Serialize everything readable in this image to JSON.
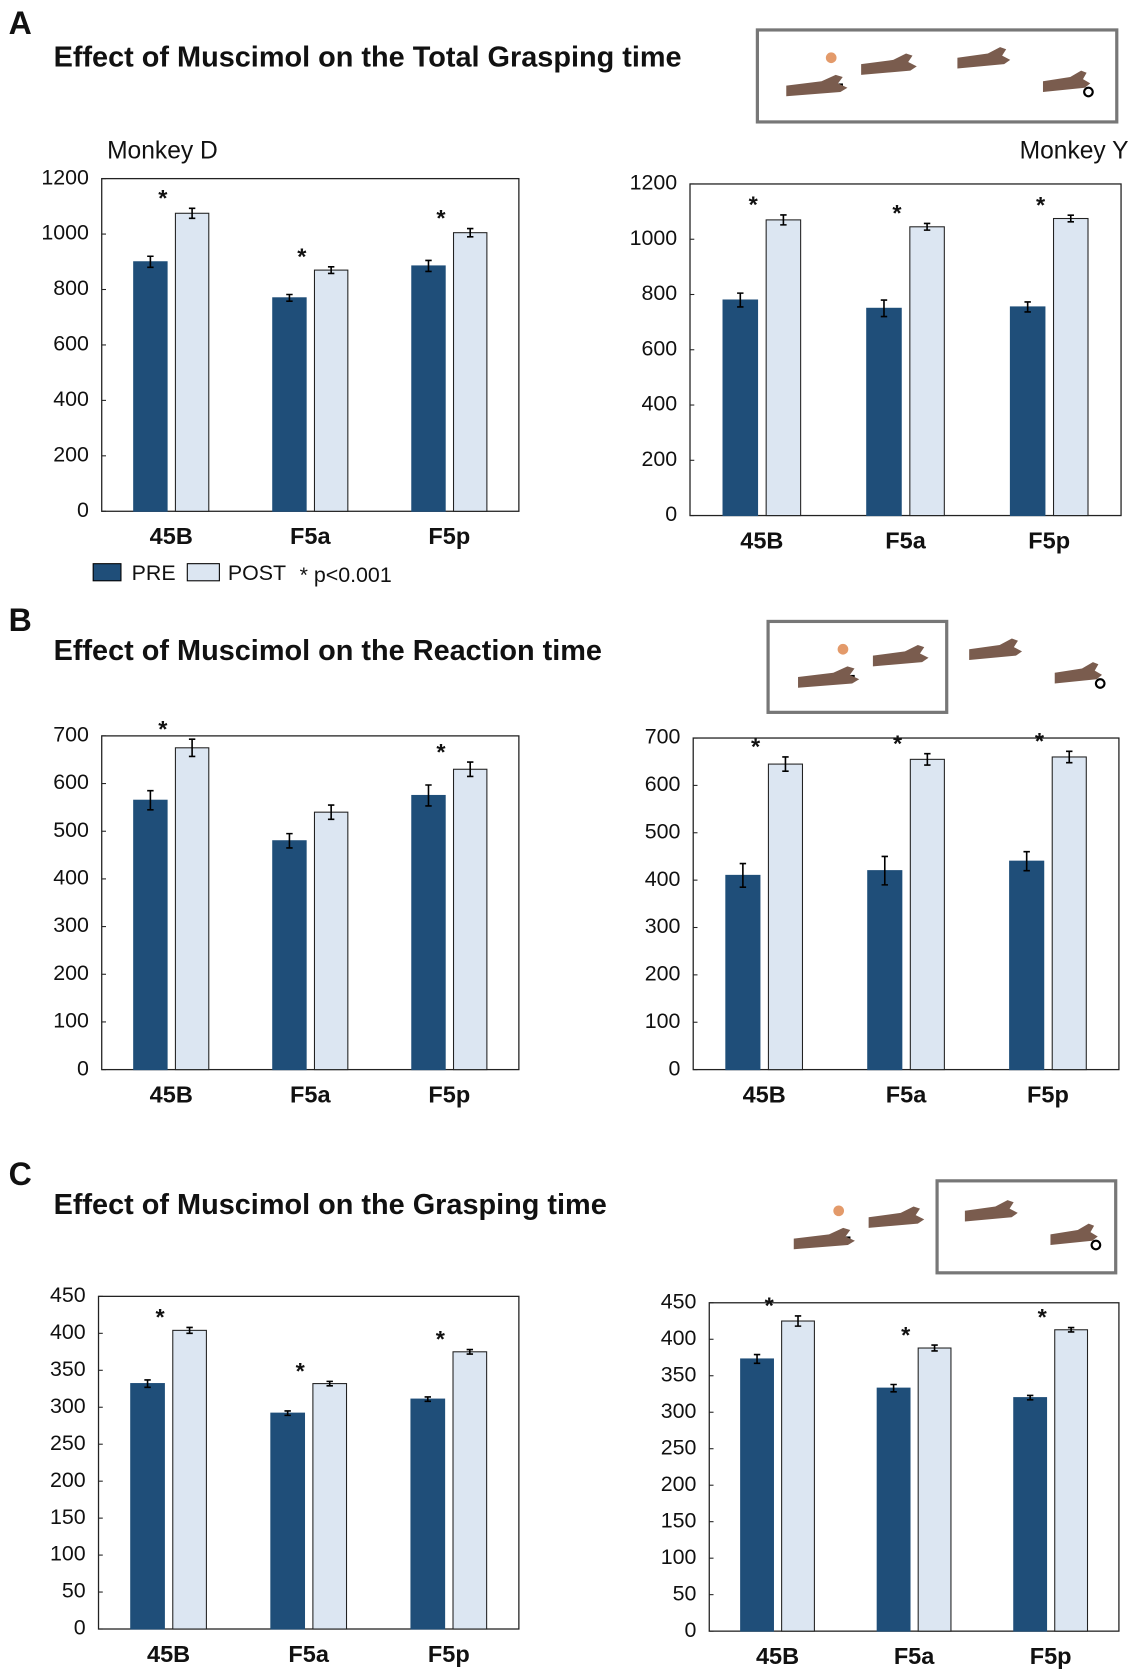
{
  "panels": [
    {
      "letter": "A",
      "title": "Effect of Muscimol on the Total Grasping time"
    },
    {
      "letter": "B",
      "title": "Effect of Muscimol on the Reaction time"
    },
    {
      "letter": "C",
      "title": "Effect of Muscimol on the Grasping time"
    }
  ],
  "legend_note": "* p<0.001",
  "chart_data": [
    {
      "type": "bar",
      "subtitle": "Monkey D",
      "categories": [
        "45B",
        "F5a",
        "F5p"
      ],
      "series": [
        {
          "name": "PRE",
          "color": "#1f4e79",
          "values": [
            900,
            770,
            885
          ],
          "errors": [
            20,
            12,
            20
          ]
        },
        {
          "name": "POST",
          "color": "#dce6f2",
          "values": [
            1075,
            870,
            1005
          ],
          "errors": [
            18,
            12,
            15
          ]
        }
      ],
      "significance": [
        "*",
        "*",
        "*"
      ],
      "ylim": [
        0,
        1200
      ],
      "yticks": [
        0,
        200,
        400,
        600,
        800,
        1000,
        1200
      ]
    },
    {
      "type": "bar",
      "subtitle": "Monkey Y",
      "categories": [
        "45B",
        "F5a",
        "F5p"
      ],
      "series": [
        {
          "color": "#1f4e79",
          "values": [
            780,
            750,
            755
          ],
          "errors": [
            25,
            30,
            18
          ]
        },
        {
          "color": "#dce6f2",
          "values": [
            1070,
            1045,
            1075
          ],
          "errors": [
            18,
            12,
            12
          ]
        }
      ],
      "significance": [
        "*",
        "*",
        "*"
      ],
      "ylim": [
        0,
        1200
      ],
      "yticks": [
        0,
        200,
        400,
        600,
        800,
        1000,
        1200
      ]
    },
    {
      "type": "bar",
      "categories": [
        "45B",
        "F5a",
        "F5p"
      ],
      "series": [
        {
          "color": "#1f4e79",
          "values": [
            565,
            480,
            575
          ],
          "errors": [
            20,
            15,
            22
          ]
        },
        {
          "color": "#dce6f2",
          "values": [
            675,
            540,
            630
          ],
          "errors": [
            18,
            15,
            15
          ]
        }
      ],
      "significance": [
        "*",
        null,
        "*"
      ],
      "ylim": [
        0,
        700
      ],
      "yticks": [
        0,
        100,
        200,
        300,
        400,
        500,
        600,
        700
      ]
    },
    {
      "type": "bar",
      "categories": [
        "45B",
        "F5a",
        "F5p"
      ],
      "series": [
        {
          "color": "#1f4e79",
          "values": [
            410,
            420,
            440
          ],
          "errors": [
            25,
            30,
            20
          ]
        },
        {
          "color": "#dce6f2",
          "values": [
            645,
            655,
            660
          ],
          "errors": [
            15,
            12,
            12
          ]
        }
      ],
      "significance": [
        "*",
        "*",
        "*"
      ],
      "ylim": [
        0,
        700
      ],
      "yticks": [
        0,
        100,
        200,
        300,
        400,
        500,
        600,
        700
      ]
    },
    {
      "type": "bar",
      "categories": [
        "45B",
        "F5a",
        "F5p"
      ],
      "series": [
        {
          "color": "#1f4e79",
          "values": [
            332,
            292,
            311
          ],
          "errors": [
            5,
            3,
            3
          ]
        },
        {
          "color": "#dce6f2",
          "values": [
            404,
            332,
            375
          ],
          "errors": [
            4,
            3,
            3
          ]
        }
      ],
      "significance": [
        "*",
        "*",
        "*"
      ],
      "ylim": [
        0,
        450
      ],
      "yticks": [
        0,
        50,
        100,
        150,
        200,
        250,
        300,
        350,
        400,
        450
      ]
    },
    {
      "type": "bar",
      "categories": [
        "45B",
        "F5a",
        "F5p"
      ],
      "series": [
        {
          "color": "#1f4e79",
          "values": [
            373,
            333,
            320
          ],
          "errors": [
            6,
            5,
            3
          ]
        },
        {
          "color": "#dce6f2",
          "values": [
            425,
            388,
            413
          ],
          "errors": [
            7,
            4,
            3
          ]
        }
      ],
      "significance": [
        "*",
        "*",
        "*"
      ],
      "ylim": [
        0,
        450
      ],
      "yticks": [
        0,
        50,
        100,
        150,
        200,
        250,
        300,
        350,
        400,
        450
      ]
    }
  ]
}
